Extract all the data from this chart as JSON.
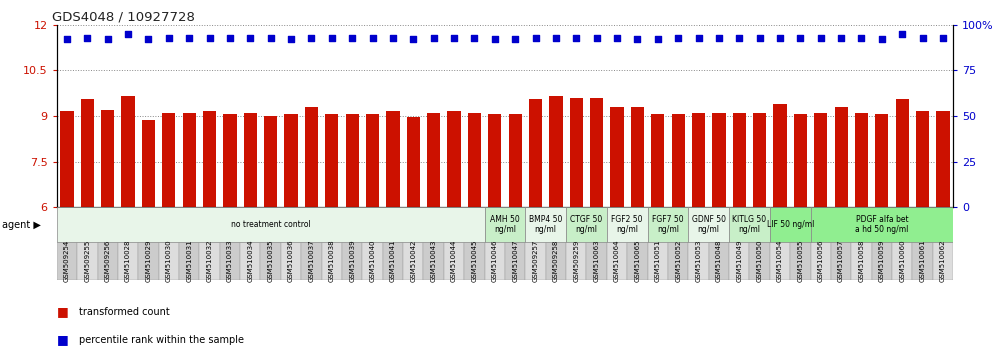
{
  "title": "GDS4048 / 10927728",
  "samples": [
    "GSM509254",
    "GSM509255",
    "GSM509256",
    "GSM510028",
    "GSM510029",
    "GSM510030",
    "GSM510031",
    "GSM510032",
    "GSM510033",
    "GSM510034",
    "GSM510035",
    "GSM510036",
    "GSM510037",
    "GSM510038",
    "GSM510039",
    "GSM510040",
    "GSM510041",
    "GSM510042",
    "GSM510043",
    "GSM510044",
    "GSM510045",
    "GSM510046",
    "GSM510047",
    "GSM509257",
    "GSM509258",
    "GSM509259",
    "GSM510063",
    "GSM510064",
    "GSM510065",
    "GSM510051",
    "GSM510052",
    "GSM510053",
    "GSM510048",
    "GSM510049",
    "GSM510050",
    "GSM510054",
    "GSM510055",
    "GSM510056",
    "GSM510057",
    "GSM510058",
    "GSM510059",
    "GSM510060",
    "GSM510061",
    "GSM510062"
  ],
  "bar_values": [
    9.15,
    9.55,
    9.2,
    9.65,
    8.85,
    9.1,
    9.1,
    9.15,
    9.05,
    9.1,
    9.0,
    9.05,
    9.3,
    9.05,
    9.05,
    9.05,
    9.15,
    8.95,
    9.1,
    9.15,
    9.1,
    9.05,
    9.05,
    9.55,
    9.65,
    9.6,
    9.6,
    9.3,
    9.3,
    9.05,
    9.05,
    9.1,
    9.1,
    9.1,
    9.1,
    9.4,
    9.05,
    9.1,
    9.3,
    9.1,
    9.05,
    9.55,
    9.15,
    9.15
  ],
  "percentile_values": [
    92,
    93,
    92,
    95,
    92,
    93,
    93,
    93,
    93,
    93,
    93,
    92,
    93,
    93,
    93,
    93,
    93,
    92,
    93,
    93,
    93,
    92,
    92,
    93,
    93,
    93,
    93,
    93,
    92,
    92,
    93,
    93,
    93,
    93,
    93,
    93,
    93,
    93,
    93,
    93,
    92,
    95,
    93,
    93
  ],
  "groups": [
    {
      "label": "no treatment control",
      "start": 0,
      "end": 21,
      "color": "#e8f5e9"
    },
    {
      "label": "AMH 50\nng/ml",
      "start": 21,
      "end": 23,
      "color": "#c8efc8"
    },
    {
      "label": "BMP4 50\nng/ml",
      "start": 23,
      "end": 25,
      "color": "#e8f5e9"
    },
    {
      "label": "CTGF 50\nng/ml",
      "start": 25,
      "end": 27,
      "color": "#c8efc8"
    },
    {
      "label": "FGF2 50\nng/ml",
      "start": 27,
      "end": 29,
      "color": "#e8f5e9"
    },
    {
      "label": "FGF7 50\nng/ml",
      "start": 29,
      "end": 31,
      "color": "#c8efc8"
    },
    {
      "label": "GDNF 50\nng/ml",
      "start": 31,
      "end": 33,
      "color": "#e8f5e9"
    },
    {
      "label": "KITLG 50\nng/ml",
      "start": 33,
      "end": 35,
      "color": "#c8efc8"
    },
    {
      "label": "LIF 50 ng/ml",
      "start": 35,
      "end": 37,
      "color": "#90EE90"
    },
    {
      "label": "PDGF alfa bet\na hd 50 ng/ml",
      "start": 37,
      "end": 44,
      "color": "#90EE90"
    }
  ],
  "ylim_left": [
    6,
    12
  ],
  "ylim_right": [
    0,
    100
  ],
  "yticks_left": [
    6,
    7.5,
    9,
    10.5,
    12
  ],
  "yticks_right": [
    0,
    25,
    50,
    75,
    100
  ],
  "bar_color": "#cc1100",
  "dot_color": "#0000cc",
  "background_color": "#ffffff"
}
